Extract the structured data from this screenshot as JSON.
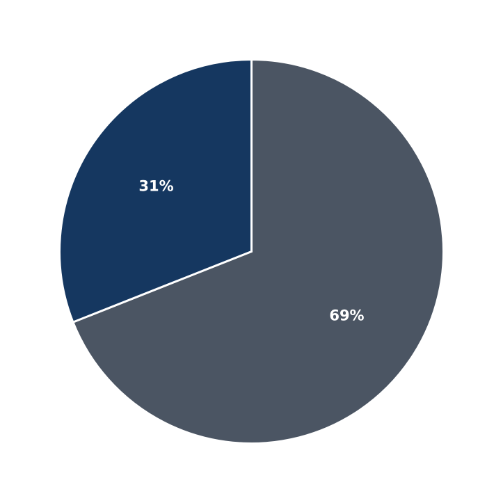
{
  "chart_data": {
    "type": "pie",
    "categories": [
      "",
      ""
    ],
    "values": [
      69,
      31
    ],
    "labels": [
      "69%",
      "31%"
    ],
    "colors": [
      "#4b5563",
      "#153760"
    ],
    "start_angle_deg": 90,
    "direction": "clockwise",
    "title": "",
    "legend": "none"
  }
}
